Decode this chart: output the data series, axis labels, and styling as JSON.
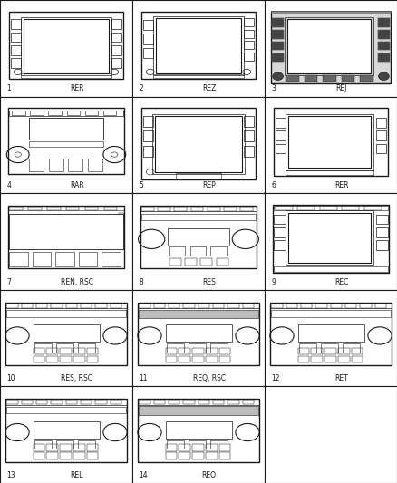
{
  "cells": [
    {
      "num": "1",
      "label": "RER",
      "type": "A",
      "row": 0,
      "col": 0
    },
    {
      "num": "2",
      "label": "REZ",
      "type": "B",
      "row": 0,
      "col": 1
    },
    {
      "num": "3",
      "label": "REJ",
      "type": "C",
      "row": 0,
      "col": 2
    },
    {
      "num": "4",
      "label": "RAR",
      "type": "D",
      "row": 1,
      "col": 0
    },
    {
      "num": "5",
      "label": "REP",
      "type": "E",
      "row": 1,
      "col": 1
    },
    {
      "num": "6",
      "label": "RER",
      "type": "F",
      "row": 1,
      "col": 2
    },
    {
      "num": "7",
      "label": "REN, RSC",
      "type": "G",
      "row": 2,
      "col": 0
    },
    {
      "num": "8",
      "label": "RES",
      "type": "H",
      "row": 2,
      "col": 1
    },
    {
      "num": "9",
      "label": "REC",
      "type": "I",
      "row": 2,
      "col": 2
    },
    {
      "num": "10",
      "label": "RES, RSC",
      "type": "J",
      "row": 3,
      "col": 0
    },
    {
      "num": "11",
      "label": "REQ, RSC",
      "type": "K",
      "row": 3,
      "col": 1
    },
    {
      "num": "12",
      "label": "RET",
      "type": "L",
      "row": 3,
      "col": 2
    },
    {
      "num": "13",
      "label": "REL",
      "type": "M",
      "row": 4,
      "col": 0
    },
    {
      "num": "14",
      "label": "REQ",
      "type": "N",
      "row": 4,
      "col": 1
    },
    {
      "num": "",
      "label": "",
      "type": "Z",
      "row": 4,
      "col": 2
    }
  ],
  "bg": "#ffffff",
  "lc": "#1a1a1a",
  "grid_rows": 5,
  "grid_cols": 3,
  "fig_w": 4.38,
  "fig_h": 5.33,
  "dpi": 100,
  "label_fs": 5.5,
  "num_fs": 5.5
}
